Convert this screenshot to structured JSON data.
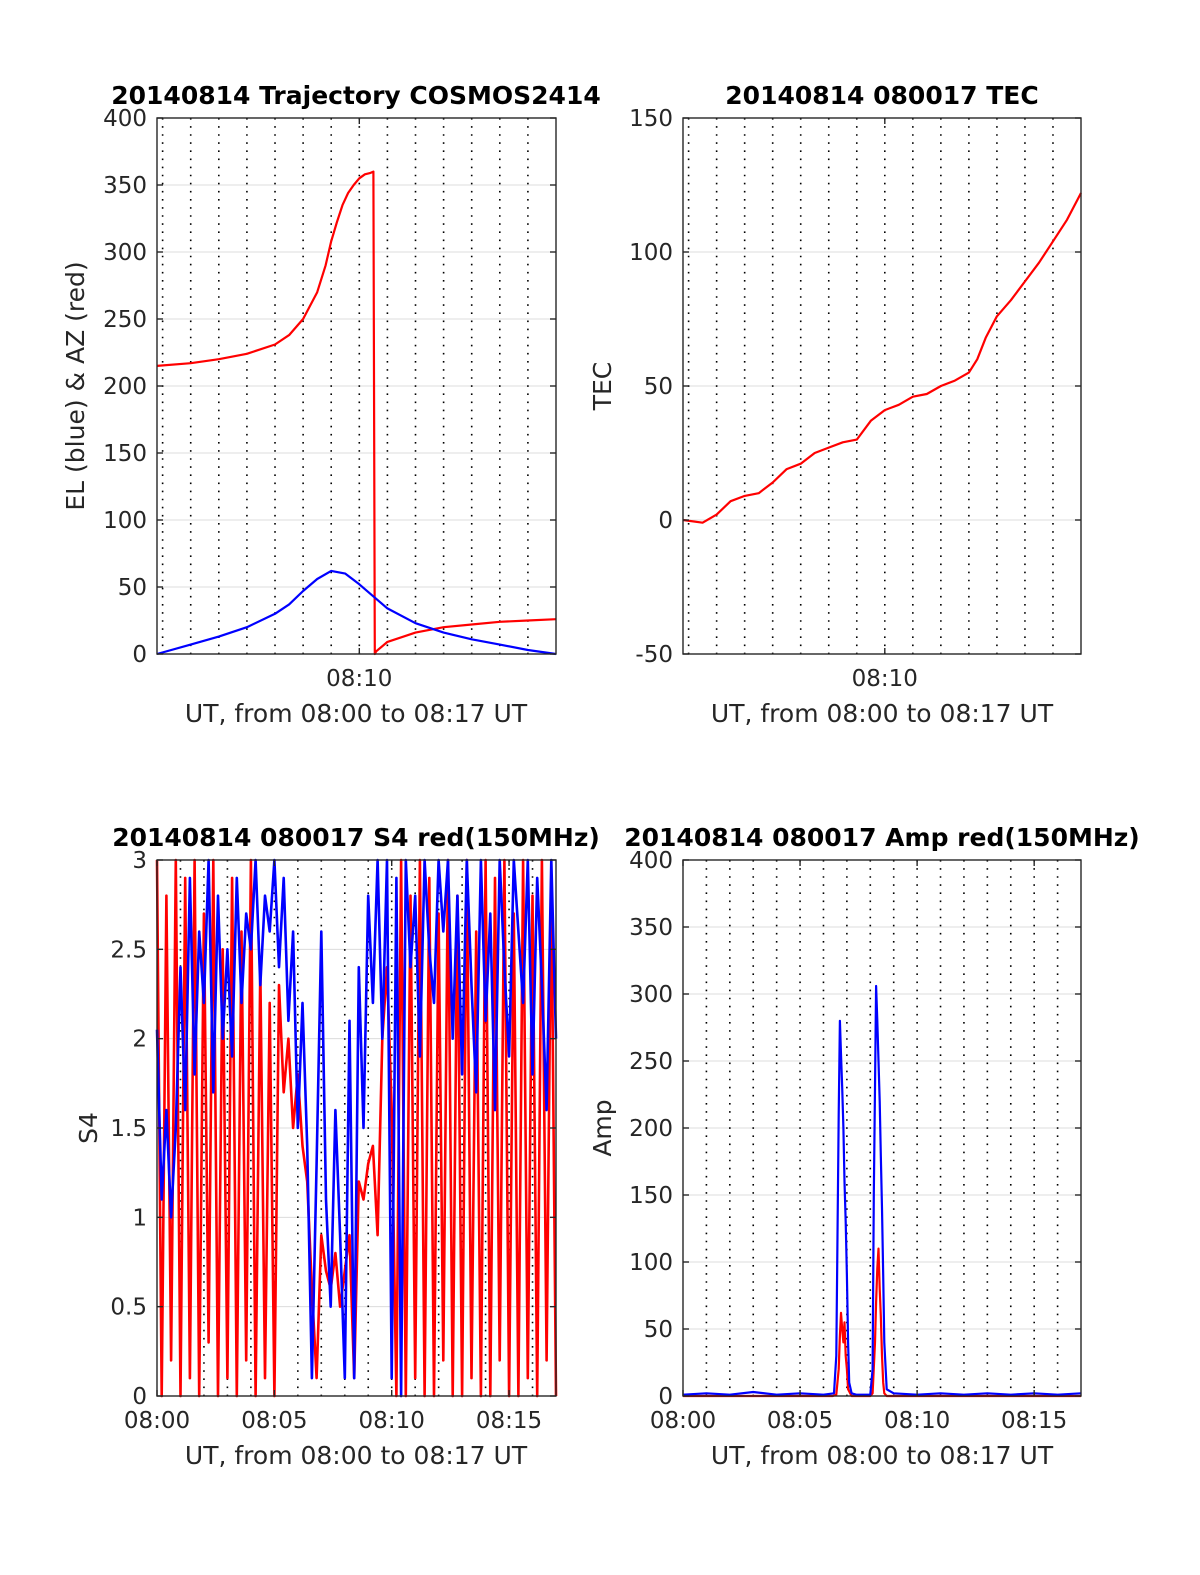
{
  "colors": {
    "az": "#ff0000",
    "el": "#0000ff",
    "red": "#ff0000",
    "blue": "#0000ff",
    "grid": "#000000"
  },
  "chart_data": [
    {
      "id": "trajectory",
      "type": "line",
      "title": "20140814 Trajectory COSMOS2414",
      "xlabel": "UT, from 08:00 to 08:17 UT",
      "ylabel": "EL (blue) & AZ (red)",
      "xlim": [
        2.8,
        17.0
      ],
      "ylim": [
        0,
        400
      ],
      "yticks": [
        0,
        50,
        100,
        150,
        200,
        250,
        300,
        350,
        400
      ],
      "xticks": [
        {
          "value": 10,
          "label": "08:10"
        }
      ],
      "grid": "dotted, every minute",
      "series": [
        {
          "key": "az",
          "color": "#ff0000",
          "x": [
            2.8,
            4,
            5,
            6,
            7,
            7.5,
            8,
            8.5,
            8.8,
            9.0,
            9.2,
            9.4,
            9.6,
            9.8,
            10.0,
            10.2,
            10.4,
            10.5,
            10.55,
            10.6,
            11,
            12,
            13,
            14,
            15,
            16,
            17
          ],
          "y": [
            215,
            217,
            220,
            224,
            231,
            238,
            250,
            270,
            290,
            308,
            322,
            335,
            344,
            350,
            355,
            358,
            359,
            360,
            0,
            2,
            9,
            16,
            20,
            22,
            24,
            25,
            26
          ]
        },
        {
          "key": "el",
          "color": "#0000ff",
          "x": [
            2.8,
            4,
            5,
            6,
            7,
            7.5,
            8,
            8.5,
            9,
            9.5,
            10,
            10.5,
            11,
            12,
            13,
            14,
            15,
            16,
            17
          ],
          "y": [
            0,
            7,
            13,
            20,
            30,
            37,
            47,
            56,
            62,
            60,
            52,
            43,
            34,
            23,
            16,
            11,
            7,
            3,
            0
          ]
        }
      ]
    },
    {
      "id": "tec",
      "type": "line",
      "title": "20140814 080017 TEC",
      "xlabel": "UT, from 08:00 to 08:17 UT",
      "ylabel": "TEC",
      "xlim": [
        2.8,
        17.0
      ],
      "ylim": [
        -50,
        150
      ],
      "yticks": [
        -50,
        0,
        50,
        100,
        150
      ],
      "xticks": [
        {
          "value": 10,
          "label": "08:10"
        }
      ],
      "grid": "dotted, every minute",
      "series": [
        {
          "key": "tec",
          "color": "#ff0000",
          "x": [
            2.8,
            3.5,
            4,
            4.5,
            5,
            5.5,
            6,
            6.5,
            7,
            7.5,
            8,
            8.5,
            9,
            9.5,
            10,
            10.5,
            11,
            11.5,
            12,
            12.5,
            13,
            13.3,
            13.6,
            14,
            14.5,
            15,
            15.5,
            16,
            16.5,
            17
          ],
          "y": [
            0,
            -1,
            2,
            7,
            9,
            10,
            14,
            19,
            21,
            25,
            27,
            29,
            30,
            37,
            41,
            43,
            46,
            47,
            50,
            52,
            55,
            60,
            68,
            76,
            82,
            89,
            96,
            104,
            112,
            122
          ]
        }
      ]
    },
    {
      "id": "s4",
      "type": "line",
      "title": "20140814 080017 S4 red(150MHz)",
      "xlabel": "UT, from 08:00 to 08:17 UT",
      "ylabel": "S4",
      "xlim": [
        0,
        17.0
      ],
      "ylim": [
        0,
        3
      ],
      "yticks": [
        0,
        0.5,
        1,
        1.5,
        2,
        2.5,
        3
      ],
      "xticks": [
        {
          "value": 0,
          "label": "08:00"
        },
        {
          "value": 5,
          "label": "08:05"
        },
        {
          "value": 10,
          "label": "08:10"
        },
        {
          "value": 15,
          "label": "08:15"
        }
      ],
      "grid": "dotted, every minute",
      "series": [
        {
          "key": "s4_red",
          "color": "#ff0000",
          "x": [
            0,
            0.2,
            0.4,
            0.6,
            0.8,
            1.0,
            1.2,
            1.4,
            1.6,
            1.8,
            2.0,
            2.2,
            2.4,
            2.6,
            2.8,
            3.0,
            3.2,
            3.4,
            3.6,
            3.8,
            4.0,
            4.2,
            4.4,
            4.6,
            4.8,
            5.0,
            5.2,
            5.4,
            5.6,
            5.8,
            6.0,
            6.2,
            6.4,
            6.6,
            6.8,
            7.0,
            7.2,
            7.4,
            7.6,
            7.8,
            8.0,
            8.2,
            8.4,
            8.6,
            8.8,
            9.0,
            9.2,
            9.4,
            9.6,
            9.8,
            10.0,
            10.2,
            10.4,
            10.6,
            10.8,
            11.0,
            11.2,
            11.4,
            11.6,
            11.8,
            12.0,
            12.2,
            12.4,
            12.6,
            12.8,
            13.0,
            13.2,
            13.4,
            13.6,
            13.8,
            14.0,
            14.2,
            14.4,
            14.6,
            14.8,
            15.0,
            15.2,
            15.4,
            15.6,
            15.8,
            16.0,
            16.2,
            16.4,
            16.6,
            16.8,
            17.0
          ],
          "y": [
            3.0,
            0.0,
            2.8,
            0.2,
            3.0,
            0.0,
            2.9,
            0.1,
            3.0,
            0.0,
            2.7,
            0.3,
            3.0,
            0.0,
            2.5,
            0.1,
            2.9,
            0.0,
            2.6,
            0.2,
            3.0,
            0.0,
            2.4,
            0.1,
            2.2,
            0.0,
            2.3,
            1.7,
            2.0,
            1.5,
            1.8,
            1.4,
            1.2,
            0.6,
            0.1,
            0.9,
            0.7,
            0.6,
            0.8,
            0.5,
            0.7,
            0.9,
            0.1,
            1.2,
            1.1,
            1.3,
            1.4,
            0.9,
            2.0,
            2.4,
            1.6,
            0.0,
            3.0,
            0.0,
            2.8,
            0.1,
            3.0,
            0.0,
            2.9,
            0.0,
            2.7,
            0.2,
            3.0,
            0.0,
            2.8,
            0.0,
            3.0,
            0.1,
            2.6,
            0.0,
            3.0,
            0.0,
            2.9,
            0.2,
            3.0,
            0.0,
            2.7,
            0.0,
            3.0,
            0.1,
            2.8,
            0.0,
            3.0,
            0.2,
            2.9,
            0.0
          ]
        },
        {
          "key": "s4_blue",
          "color": "#0000ff",
          "x": [
            0,
            0.2,
            0.4,
            0.6,
            0.8,
            1.0,
            1.2,
            1.4,
            1.6,
            1.8,
            2.0,
            2.2,
            2.4,
            2.6,
            2.8,
            3.0,
            3.2,
            3.4,
            3.6,
            3.8,
            4.0,
            4.2,
            4.4,
            4.6,
            4.8,
            5.0,
            5.2,
            5.4,
            5.6,
            5.8,
            6.0,
            6.2,
            6.4,
            6.6,
            6.8,
            7.0,
            7.2,
            7.4,
            7.6,
            7.8,
            8.0,
            8.2,
            8.4,
            8.6,
            8.8,
            9.0,
            9.2,
            9.4,
            9.6,
            9.8,
            10.0,
            10.2,
            10.4,
            10.6,
            10.8,
            11.0,
            11.2,
            11.4,
            11.6,
            11.8,
            12.0,
            12.2,
            12.4,
            12.6,
            12.8,
            13.0,
            13.2,
            13.4,
            13.6,
            13.8,
            14.0,
            14.2,
            14.4,
            14.6,
            14.8,
            15.0,
            15.2,
            15.4,
            15.6,
            15.8,
            16.0,
            16.2,
            16.4,
            16.6,
            16.8,
            17.0
          ],
          "y": [
            2.05,
            1.1,
            1.6,
            1.0,
            1.5,
            2.4,
            1.6,
            2.9,
            1.8,
            2.6,
            2.2,
            3.0,
            1.7,
            2.8,
            2.0,
            2.5,
            1.9,
            2.9,
            2.2,
            2.7,
            2.5,
            3.0,
            2.3,
            2.8,
            2.6,
            3.0,
            2.4,
            2.9,
            2.1,
            2.6,
            1.5,
            2.2,
            1.4,
            0.1,
            1.3,
            2.6,
            1.1,
            0.5,
            1.6,
            0.9,
            0.1,
            2.1,
            0.1,
            2.4,
            1.5,
            2.8,
            2.2,
            3.0,
            2.0,
            3.0,
            0.1,
            2.9,
            0.0,
            3.0,
            2.4,
            2.8,
            1.9,
            3.0,
            2.5,
            2.2,
            3.0,
            2.6,
            3.0,
            2.0,
            2.8,
            1.8,
            3.0,
            2.3,
            1.7,
            3.0,
            2.1,
            2.7,
            1.6,
            3.0,
            2.4,
            1.9,
            3.0,
            2.6,
            2.2,
            3.0,
            1.8,
            2.9,
            2.3,
            1.6,
            3.0,
            2.0
          ]
        }
      ]
    },
    {
      "id": "amp",
      "type": "line",
      "title": "20140814 080017 Amp red(150MHz)",
      "xlabel": "UT, from 08:00 to 08:17 UT",
      "ylabel": "Amp",
      "xlim": [
        0,
        17.0
      ],
      "ylim": [
        0,
        400
      ],
      "yticks": [
        0,
        50,
        100,
        150,
        200,
        250,
        300,
        350,
        400
      ],
      "xticks": [
        {
          "value": 0,
          "label": "08:00"
        },
        {
          "value": 5,
          "label": "08:05"
        },
        {
          "value": 10,
          "label": "08:10"
        },
        {
          "value": 15,
          "label": "08:15"
        }
      ],
      "grid": "dotted, every minute",
      "series": [
        {
          "key": "amp_red",
          "color": "#ff0000",
          "x": [
            0,
            6.4,
            6.55,
            6.65,
            6.7,
            6.75,
            6.8,
            6.85,
            6.9,
            6.95,
            7.0,
            7.05,
            7.2,
            8.0,
            8.1,
            8.2,
            8.25,
            8.3,
            8.35,
            8.4,
            8.45,
            8.5,
            8.55,
            8.6,
            8.7,
            17.0
          ],
          "y": [
            0,
            0,
            1,
            20,
            45,
            62,
            50,
            40,
            55,
            30,
            20,
            5,
            0,
            0,
            2,
            40,
            70,
            95,
            110,
            80,
            60,
            30,
            10,
            2,
            0,
            0
          ]
        },
        {
          "key": "amp_blue",
          "color": "#0000ff",
          "x": [
            0,
            1,
            2,
            3,
            4,
            5,
            6,
            6.45,
            6.55,
            6.6,
            6.65,
            6.7,
            6.75,
            6.8,
            6.85,
            6.9,
            6.95,
            7.0,
            7.05,
            7.1,
            7.2,
            7.4,
            7.8,
            8.0,
            8.1,
            8.15,
            8.2,
            8.25,
            8.3,
            8.35,
            8.4,
            8.45,
            8.5,
            8.55,
            8.6,
            8.7,
            9,
            10,
            11,
            12,
            13,
            14,
            15,
            16,
            17.0
          ],
          "y": [
            1,
            2,
            1,
            3,
            1,
            2,
            1,
            2,
            30,
            120,
            210,
            280,
            255,
            230,
            200,
            160,
            130,
            90,
            40,
            10,
            2,
            1,
            1,
            1,
            20,
            150,
            230,
            306,
            280,
            250,
            220,
            180,
            140,
            90,
            40,
            5,
            2,
            1,
            2,
            1,
            2,
            1,
            2,
            1,
            2
          ]
        }
      ]
    }
  ]
}
